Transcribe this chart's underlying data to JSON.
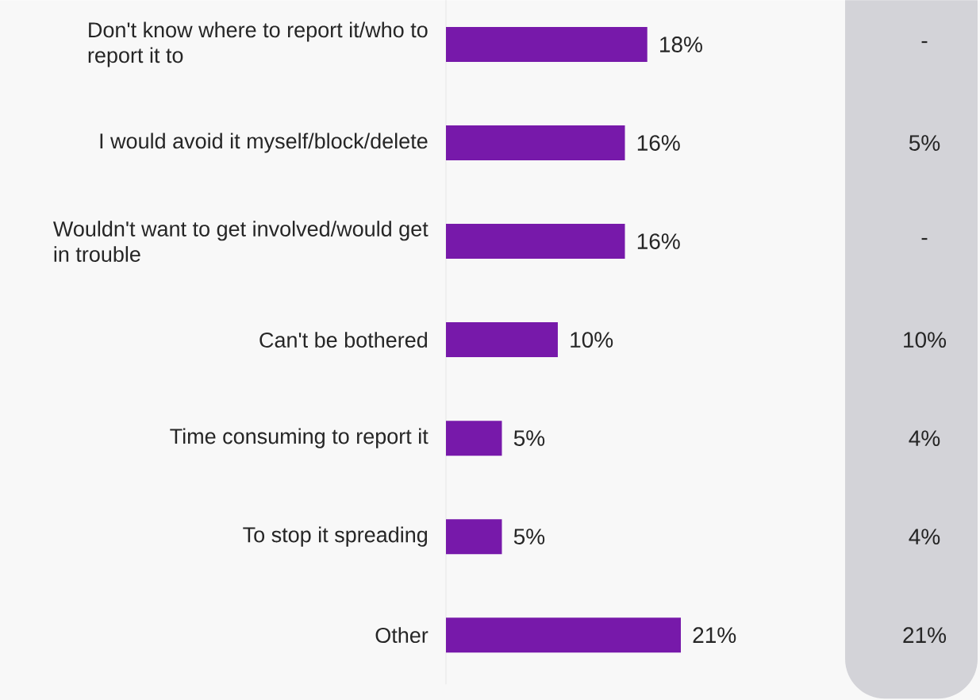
{
  "chart_data": [
    {
      "type": "bar",
      "orientation": "horizontal",
      "categories": [
        "Don't know where to report it/who to report it to",
        "I would avoid it myself/block/delete",
        "Wouldn't want to get involved/would get in trouble",
        "Can't be bothered",
        "Time consuming to report it",
        "To stop it spreading",
        "Other"
      ],
      "values": [
        18,
        16,
        16,
        10,
        5,
        5,
        21
      ],
      "value_labels": [
        "18%",
        "16%",
        "16%",
        "10%",
        "5%",
        "5%",
        "21%"
      ],
      "color": "#7719aa",
      "xlim": [
        0,
        21
      ],
      "tick_labels": "y"
    },
    {
      "type": "other",
      "annotations": [
        "-",
        "5%",
        "-",
        "10%",
        "4%",
        "4%",
        "21%"
      ]
    }
  ]
}
